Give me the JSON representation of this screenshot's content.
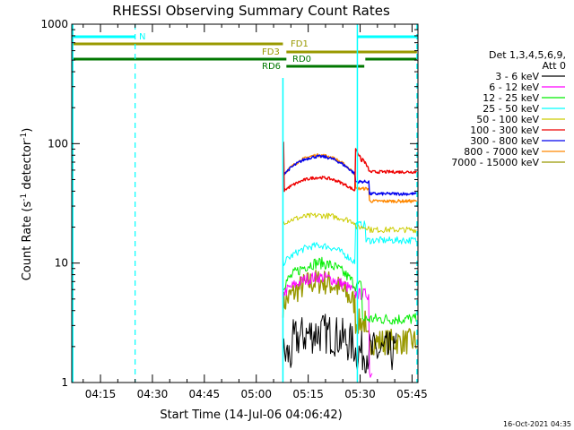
{
  "chart_data": {
    "type": "line",
    "title": "RHESSI Observing Summary Count Rates",
    "xlabel": "Start Time (14-Jul-06 04:06:42)",
    "ylabel_main": "Count Rate (s",
    "ylabel_sup1": "-1",
    "ylabel_mid": " detector",
    "ylabel_sup2": "-1",
    "ylabel_end": ")",
    "y_scale": "log",
    "ylim": [
      1,
      1000
    ],
    "xlim_minutes": [
      0,
      100
    ],
    "x_ticks": [
      {
        "label": "04:15",
        "minute": 8.3
      },
      {
        "label": "04:30",
        "minute": 23.3
      },
      {
        "label": "04:45",
        "minute": 38.3
      },
      {
        "label": "05:00",
        "minute": 53.3
      },
      {
        "label": "05:15",
        "minute": 68.3
      },
      {
        "label": "05:30",
        "minute": 83.3
      },
      {
        "label": "05:45",
        "minute": 98.3
      }
    ],
    "y_ticks": [
      {
        "label": "1",
        "value": 1
      },
      {
        "label": "10",
        "value": 10
      },
      {
        "label": "100",
        "value": 100
      },
      {
        "label": "1000",
        "value": 1000
      }
    ],
    "legend_title_1": "Det 1,3,4,5,6,9,",
    "legend_title_2": "Att 0",
    "legend_position": "right",
    "series": [
      {
        "name": "3 - 6 keV",
        "color": "#000000"
      },
      {
        "name": "6 - 12 keV",
        "color": "#ff00ff"
      },
      {
        "name": "12 - 25 keV",
        "color": "#00ee00"
      },
      {
        "name": "25 - 50 keV",
        "color": "#00ffff"
      },
      {
        "name": "50 - 100 keV",
        "color": "#cccc00"
      },
      {
        "name": "100 - 300 keV",
        "color": "#ee0000"
      },
      {
        "name": "300 - 800 keV",
        "color": "#0000ee"
      },
      {
        "name": "800 - 7000 keV",
        "color": "#ff8800"
      },
      {
        "name": "7000 - 15000 keV",
        "color": "#999900"
      }
    ],
    "flag_bars": [
      {
        "label": "N",
        "color": "#00ffff"
      },
      {
        "label": "FD1",
        "color": "#999900"
      },
      {
        "label": "FD3",
        "color": "#999900"
      },
      {
        "label": "RD0",
        "color": "#007700"
      },
      {
        "label": "RD6",
        "color": "#007700"
      }
    ],
    "footer_timestamp": "16-Oct-2021 04:35"
  }
}
